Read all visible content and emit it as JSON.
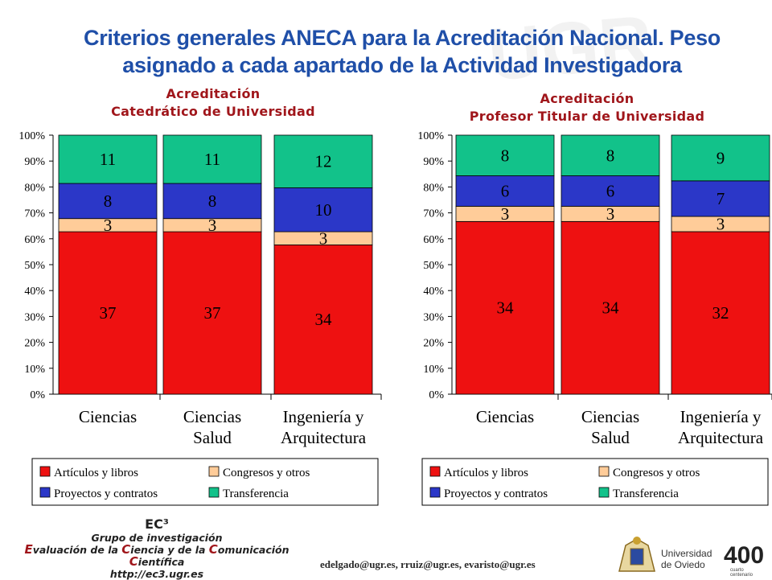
{
  "header": {
    "title_line1": "Criterios generales ANECA para la Acreditación Nacional. Peso",
    "title_line2": "asignado a cada apartado de la Actividad Investigadora"
  },
  "colors": {
    "articulos": "#ee1111",
    "congresos": "#ffcc99",
    "proyectos": "#2b37c8",
    "transferencia": "#12c28a",
    "title": "#1f4fa8",
    "subtitle": "#a0161b"
  },
  "chart_data": [
    {
      "type": "bar",
      "stacked": "percent",
      "title_line1": "Acreditación",
      "title_line2": "Catedrático de Universidad",
      "categories": [
        [
          "Ciencias"
        ],
        [
          "Ciencias",
          "Salud"
        ],
        [
          "Ingeniería y",
          "Arquitectura"
        ]
      ],
      "series": [
        {
          "name": "Artículos y libros",
          "values": [
            37,
            37,
            34
          ]
        },
        {
          "name": "Congresos y otros",
          "values": [
            3,
            3,
            3
          ]
        },
        {
          "name": "Proyectos y contratos",
          "values": [
            8,
            8,
            10
          ]
        },
        {
          "name": "Transferencia",
          "values": [
            11,
            11,
            12
          ]
        }
      ],
      "yticks": [
        "0%",
        "10%",
        "20%",
        "30%",
        "40%",
        "50%",
        "60%",
        "70%",
        "80%",
        "90%",
        "100%"
      ],
      "ylim": [
        0,
        100
      ],
      "grid": false,
      "legend": "bottom"
    },
    {
      "type": "bar",
      "stacked": "percent",
      "title_line1": "Acreditación",
      "title_line2": "Profesor Titular de Universidad",
      "categories": [
        [
          "Ciencias"
        ],
        [
          "Ciencias",
          "Salud"
        ],
        [
          "Ingeniería y",
          "Arquitectura"
        ]
      ],
      "series": [
        {
          "name": "Artículos y libros",
          "values": [
            34,
            34,
            32
          ]
        },
        {
          "name": "Congresos y otros",
          "values": [
            3,
            3,
            3
          ]
        },
        {
          "name": "Proyectos y contratos",
          "values": [
            6,
            6,
            7
          ]
        },
        {
          "name": "Transferencia",
          "values": [
            8,
            8,
            9
          ]
        }
      ],
      "yticks": [
        "0%",
        "10%",
        "20%",
        "30%",
        "40%",
        "50%",
        "60%",
        "70%",
        "80%",
        "90%",
        "100%"
      ],
      "ylim": [
        0,
        100
      ],
      "grid": false,
      "legend": "bottom"
    }
  ],
  "footer": {
    "ec3": "EC³",
    "group": "Grupo de investigación",
    "evaluacion_E": "E",
    "evaluacion_rest1": "valuación de la ",
    "evaluacion_C1": "C",
    "evaluacion_rest2": "iencia y de la ",
    "evaluacion_C2": "C",
    "evaluacion_rest3": "omunicación ",
    "evaluacion_C3": "C",
    "evaluacion_rest4": "ientífica",
    "url": "http://ec3.ugr.es",
    "emails": "edelgado@ugr.es,  rruiz@ugr.es,  evaristo@ugr.es",
    "oviedo_name1": "Universidad",
    "oviedo_name2": "de Oviedo",
    "anniv_number": "400",
    "anniv_text1": "cuarto",
    "anniv_text2": "centenario"
  }
}
